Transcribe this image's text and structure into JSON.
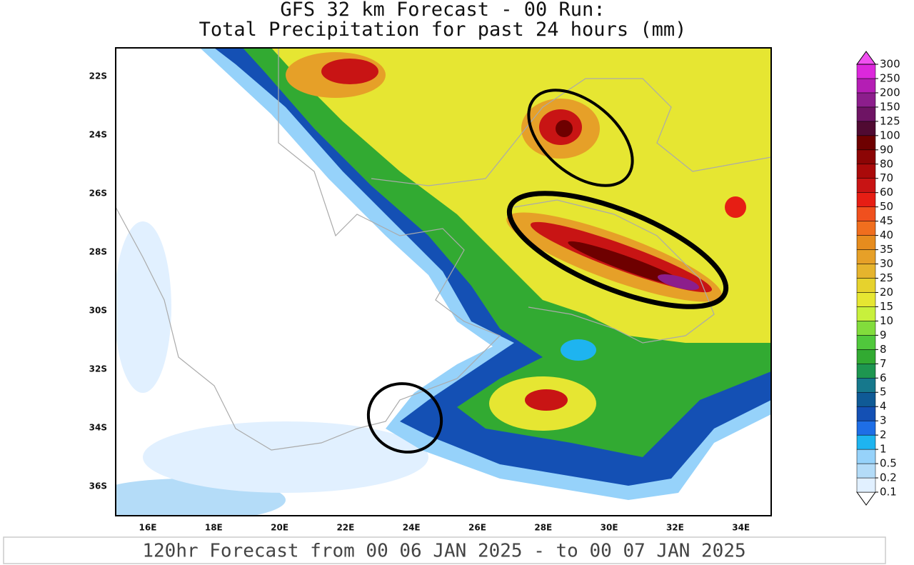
{
  "header": {
    "title_line1": "GFS 32 km Forecast - 00 Run:",
    "title_line2": "Total Precipitation for past 24 hours (mm)"
  },
  "map": {
    "lat_labels": [
      "22S",
      "24S",
      "26S",
      "28S",
      "30S",
      "32S",
      "34S",
      "36S"
    ],
    "lon_labels": [
      "16E",
      "18E",
      "20E",
      "22E",
      "24E",
      "26E",
      "28E",
      "30E",
      "32E",
      "34E"
    ]
  },
  "colorbar": {
    "levels": [
      0.1,
      0.2,
      0.5,
      1,
      2,
      3,
      4,
      5,
      6,
      7,
      8,
      9,
      10,
      15,
      20,
      25,
      30,
      35,
      40,
      45,
      50,
      60,
      70,
      80,
      90,
      100,
      125,
      150,
      200,
      250,
      300
    ],
    "colors": [
      "#ffffff",
      "#e1f0ff",
      "#b4dcf8",
      "#96d2fa",
      "#1eb4f0",
      "#1e6ee6",
      "#1450b4",
      "#0f5a96",
      "#16788c",
      "#1e9650",
      "#32aa32",
      "#50c83c",
      "#82dc3c",
      "#c8f03c",
      "#e6e632",
      "#e6d22d",
      "#e6b42d",
      "#e6a028",
      "#e68c1e",
      "#f06e1e",
      "#f0501e",
      "#e61e14",
      "#c81414",
      "#aa0a0a",
      "#8c0505",
      "#6e0000",
      "#500a32",
      "#6e1464",
      "#8c1e8c",
      "#b41eb4",
      "#dc28dc",
      "#f050f0"
    ]
  },
  "footer": {
    "text": "120hr Forecast from 00 06 JAN 2025 - to 00 07 JAN 2025"
  }
}
